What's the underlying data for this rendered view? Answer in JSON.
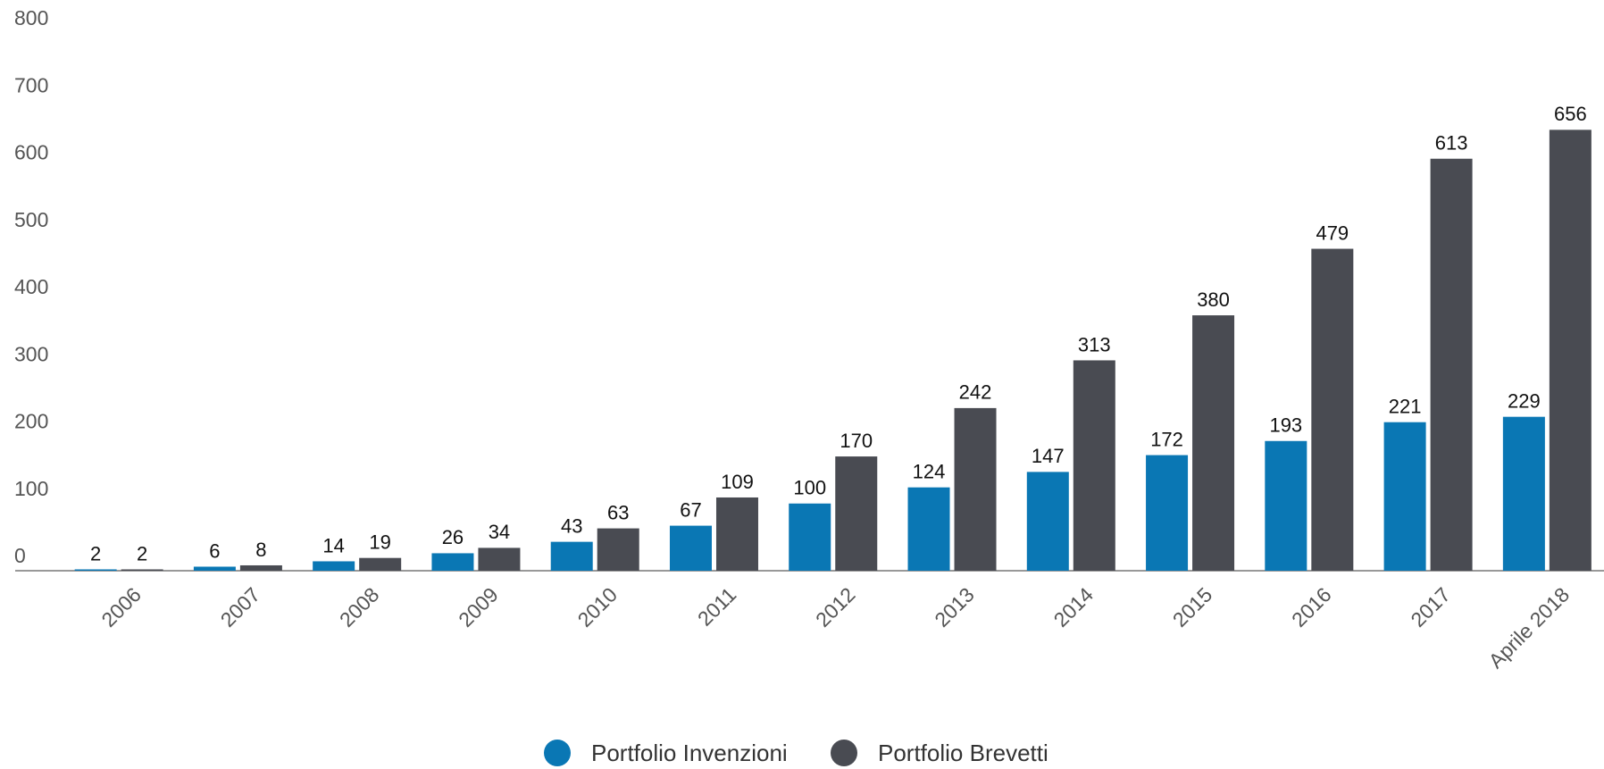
{
  "chart_data": {
    "type": "bar",
    "categories": [
      "2006",
      "2007",
      "2008",
      "2009",
      "2010",
      "2011",
      "2012",
      "2013",
      "2014",
      "2015",
      "2016",
      "2017",
      "Aprile 2018"
    ],
    "series": [
      {
        "name": "Portfolio Invenzioni",
        "color": "#0a77b4",
        "values": [
          2,
          6,
          14,
          26,
          43,
          67,
          100,
          124,
          147,
          172,
          193,
          221,
          229
        ]
      },
      {
        "name": "Portfolio Brevetti",
        "color": "#494b52",
        "values": [
          2,
          8,
          19,
          34,
          63,
          109,
          170,
          242,
          313,
          380,
          479,
          613,
          656
        ]
      }
    ],
    "ylim": [
      0,
      800
    ],
    "yticks": [
      0,
      100,
      200,
      300,
      400,
      500,
      600,
      700,
      800
    ],
    "grid": false,
    "legend": "bottom"
  }
}
